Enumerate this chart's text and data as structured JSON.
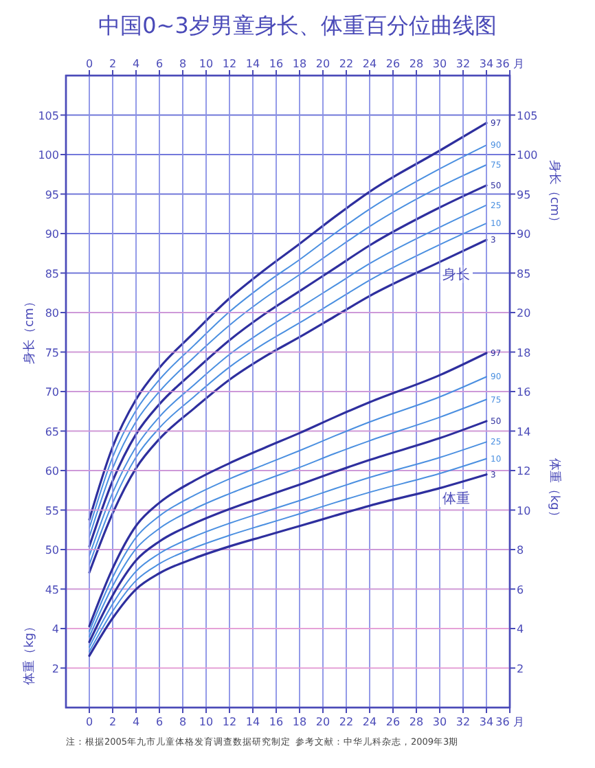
{
  "chart_data": [
    {
      "type": "line",
      "title": "中国0~3岁男童身长、体重百分位曲线图",
      "x": [
        0,
        2,
        4,
        6,
        9,
        12,
        15,
        18,
        21,
        24,
        30,
        34
      ],
      "xlim": [
        -2,
        36
      ],
      "x2lim": [
        -2,
        36
      ],
      "x2ticks": [
        0,
        2,
        4,
        6,
        8,
        10,
        12,
        14,
        16,
        18,
        20,
        22,
        24,
        26,
        28,
        30,
        32,
        34,
        {
          "value": 36,
          "label": "36 月"
        }
      ],
      "ylim": [
        30,
        110
      ],
      "yticks": [
        45,
        50,
        55,
        60,
        65,
        70,
        75,
        80,
        85,
        90,
        95,
        100,
        105
      ],
      "ylabel": "身长（cm）",
      "y2lim": [
        30,
        110
      ],
      "y2ticks": [
        85,
        90,
        95,
        100,
        105
      ],
      "y2label": "身长（cm）",
      "grid": true,
      "marker": "none",
      "line_style": "solid",
      "series": [
        {
          "name": "97",
          "color": "#2e2f9e",
          "values": [
            53.8,
            63.0,
            69.0,
            73.0,
            77.5,
            81.8,
            85.4,
            88.7,
            92.1,
            95.3,
            100.5,
            104.0
          ]
        },
        {
          "name": "90",
          "color": "#4a8fe0",
          "values": [
            52.7,
            61.7,
            67.6,
            71.5,
            75.9,
            80.1,
            83.6,
            86.7,
            90.0,
            93.1,
            98.2,
            101.2
          ]
        },
        {
          "name": "75",
          "color": "#4a8fe0",
          "values": [
            51.6,
            60.3,
            66.2,
            70.0,
            74.4,
            78.4,
            81.8,
            84.8,
            87.9,
            90.9,
            95.9,
            98.7
          ]
        },
        {
          "name": "50",
          "color": "#2e2f9e",
          "values": [
            50.4,
            58.7,
            64.6,
            68.4,
            72.6,
            76.5,
            79.8,
            82.7,
            85.6,
            88.5,
            93.3,
            96.1
          ]
        },
        {
          "name": "25",
          "color": "#4a8fe0",
          "values": [
            49.2,
            57.2,
            63.0,
            66.8,
            70.9,
            74.7,
            77.8,
            80.6,
            83.4,
            86.2,
            90.8,
            93.6
          ]
        },
        {
          "name": "10",
          "color": "#4a8fe0",
          "values": [
            48.1,
            55.9,
            61.7,
            65.4,
            69.4,
            73.1,
            76.1,
            78.7,
            81.4,
            84.1,
            88.6,
            91.3
          ]
        },
        {
          "name": "3",
          "color": "#2e2f9e",
          "values": [
            47.1,
            54.6,
            60.3,
            64.0,
            67.9,
            71.5,
            74.4,
            76.9,
            79.5,
            82.1,
            86.4,
            89.2
          ]
        }
      ],
      "annotations": [
        "身长"
      ]
    },
    {
      "type": "line",
      "x": [
        0,
        2,
        4,
        6,
        9,
        12,
        15,
        18,
        21,
        24,
        30,
        34
      ],
      "xlim": [
        -2,
        36
      ],
      "xticks": [
        0,
        2,
        4,
        6,
        8,
        10,
        12,
        14,
        16,
        18,
        20,
        22,
        24,
        26,
        28,
        30,
        32,
        34,
        {
          "value": 36,
          "label": "36 月"
        }
      ],
      "ylim": [
        0,
        32
      ],
      "yticks": [
        2,
        4
      ],
      "ylabel": "体重（kg）",
      "y2lim": [
        0,
        32
      ],
      "y2ticks": [
        2,
        4,
        6,
        8,
        10,
        12,
        14,
        16,
        18,
        20
      ],
      "y2label": "体重（kg）",
      "grid": true,
      "marker": "none",
      "line_style": "solid",
      "series": [
        {
          "name": "97",
          "color": "#2e2f9e",
          "values": [
            4.12,
            7.05,
            9.2,
            10.37,
            11.49,
            12.37,
            13.15,
            13.9,
            14.7,
            15.46,
            16.83,
            17.95
          ]
        },
        {
          "name": "90",
          "color": "#4a8fe0",
          "values": [
            3.85,
            6.59,
            8.61,
            9.7,
            10.75,
            11.58,
            12.3,
            13.01,
            13.75,
            14.46,
            15.73,
            16.75
          ]
        },
        {
          "name": "75",
          "color": "#4a8fe0",
          "values": [
            3.59,
            6.15,
            8.04,
            9.07,
            10.06,
            10.83,
            11.51,
            12.16,
            12.86,
            13.51,
            14.7,
            15.6
          ]
        },
        {
          "name": "50",
          "color": "#2e2f9e",
          "values": [
            3.32,
            5.68,
            7.45,
            8.41,
            9.33,
            10.05,
            10.68,
            11.29,
            11.93,
            12.54,
            13.64,
            14.5
          ]
        },
        {
          "name": "25",
          "color": "#4a8fe0",
          "values": [
            3.06,
            5.25,
            6.9,
            7.8,
            8.66,
            9.33,
            9.91,
            10.48,
            11.08,
            11.65,
            12.66,
            13.45
          ]
        },
        {
          "name": "10",
          "color": "#4a8fe0",
          "values": [
            2.83,
            4.88,
            6.43,
            7.28,
            8.09,
            8.72,
            9.27,
            9.81,
            10.37,
            10.9,
            11.85,
            12.6
          ]
        },
        {
          "name": "3",
          "color": "#2e2f9e",
          "values": [
            2.62,
            4.53,
            5.99,
            6.8,
            7.56,
            8.16,
            8.68,
            9.19,
            9.71,
            10.22,
            11.11,
            11.8
          ]
        }
      ],
      "annotations": [
        "体重",
        "注：根据2005年九市儿童体格发育调查数据研究制定",
        "参考文献：中华儿科杂志，2009年3期"
      ]
    }
  ]
}
